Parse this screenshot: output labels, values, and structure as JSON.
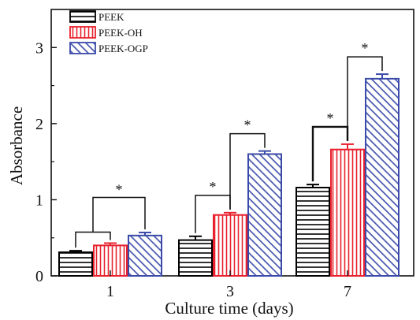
{
  "chart_data": {
    "type": "bar",
    "xlabel": "Culture time (days)",
    "ylabel": "Absorbance",
    "categories": [
      "1",
      "3",
      "7"
    ],
    "ylim": [
      0,
      3.5
    ],
    "yticks": [
      0,
      1,
      2,
      3
    ],
    "series": [
      {
        "name": "PEEK",
        "values": [
          0.31,
          0.47,
          1.16
        ],
        "errors": [
          0.02,
          0.05,
          0.04
        ],
        "color": "#000000",
        "pattern": "horizontal-lines"
      },
      {
        "name": "PEEK-OH",
        "values": [
          0.4,
          0.8,
          1.66
        ],
        "errors": [
          0.03,
          0.03,
          0.07
        ],
        "color": "#e8212e",
        "pattern": "vertical-lines"
      },
      {
        "name": "PEEK-OGP",
        "values": [
          0.53,
          1.6,
          2.59
        ],
        "errors": [
          0.04,
          0.04,
          0.06
        ],
        "color": "#3a4aa8",
        "pattern": "diagonal-lines"
      }
    ],
    "legend": "top-left",
    "grid": false,
    "significance": [
      {
        "category": "1",
        "label": "*",
        "type": "grouped",
        "from": [
          0,
          1
        ],
        "to": 2
      },
      {
        "category": "3",
        "label": "*",
        "from": 0,
        "to": 1
      },
      {
        "category": "3",
        "label": "*",
        "from": 1,
        "to": 2
      },
      {
        "category": "7",
        "label": "*",
        "from": 0,
        "to": 1
      },
      {
        "category": "7",
        "label": "*",
        "from": 1,
        "to": 2
      }
    ]
  }
}
